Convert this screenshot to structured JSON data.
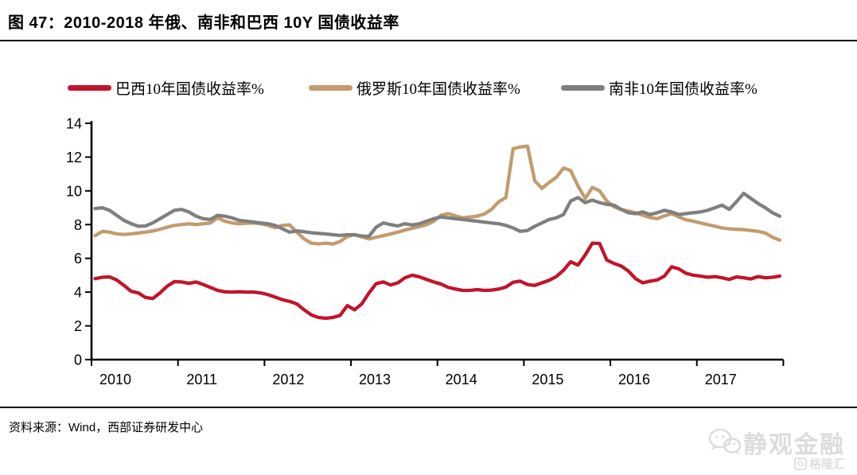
{
  "figure": {
    "title": "图 47：2010-2018 年俄、南非和巴西 10Y 国债收益率",
    "source": "资料来源：Wind，西部证券研发中心"
  },
  "watermark": {
    "wechat_name": "静观金融",
    "logo_letter": "G",
    "platform_name": "格隆汇"
  },
  "chart_data": {
    "type": "line",
    "title": "",
    "xlabel": "",
    "ylabel": "",
    "x_tick_labels": [
      "2010",
      "2011",
      "2012",
      "2013",
      "2014",
      "2015",
      "2016",
      "2017"
    ],
    "x_range_years": [
      2010,
      2018
    ],
    "ylim": [
      0,
      14
    ],
    "y_ticks": [
      0,
      2,
      4,
      6,
      8,
      10,
      12,
      14
    ],
    "grid": false,
    "legend_position": "top",
    "x_frequency": "monthly",
    "series": [
      {
        "name": "巴西10年国债收益率%",
        "color": "#C0152B",
        "values": [
          4.8,
          4.88,
          4.9,
          4.72,
          4.4,
          4.05,
          3.95,
          3.68,
          3.62,
          3.95,
          4.35,
          4.62,
          4.6,
          4.52,
          4.6,
          4.45,
          4.28,
          4.1,
          4.02,
          4.0,
          4.02,
          4.0,
          4.0,
          3.95,
          3.85,
          3.7,
          3.55,
          3.45,
          3.3,
          2.95,
          2.65,
          2.5,
          2.45,
          2.5,
          2.62,
          3.2,
          2.95,
          3.3,
          3.95,
          4.5,
          4.6,
          4.42,
          4.55,
          4.85,
          5.0,
          4.9,
          4.75,
          4.6,
          4.48,
          4.28,
          4.18,
          4.1,
          4.1,
          4.15,
          4.1,
          4.12,
          4.18,
          4.3,
          4.58,
          4.65,
          4.45,
          4.4,
          4.55,
          4.7,
          4.92,
          5.3,
          5.8,
          5.6,
          6.2,
          6.9,
          6.88,
          5.9,
          5.7,
          5.55,
          5.25,
          4.8,
          4.55,
          4.65,
          4.72,
          4.95,
          5.5,
          5.38,
          5.12,
          5.0,
          4.95,
          4.88,
          4.92,
          4.85,
          4.75,
          4.9,
          4.85,
          4.78,
          4.92,
          4.85,
          4.88,
          4.95
        ]
      },
      {
        "name": "俄罗斯10年国债收益率%",
        "color": "#C39B6E",
        "values": [
          7.35,
          7.6,
          7.55,
          7.45,
          7.42,
          7.45,
          7.5,
          7.55,
          7.62,
          7.72,
          7.85,
          7.95,
          8.0,
          8.05,
          8.0,
          8.05,
          8.1,
          8.4,
          8.2,
          8.1,
          8.05,
          8.08,
          8.1,
          8.05,
          7.95,
          7.82,
          7.95,
          7.98,
          7.55,
          7.15,
          6.9,
          6.86,
          6.9,
          6.85,
          7.0,
          7.3,
          7.4,
          7.28,
          7.15,
          7.25,
          7.35,
          7.45,
          7.55,
          7.68,
          7.78,
          7.88,
          8.0,
          8.2,
          8.55,
          8.65,
          8.52,
          8.4,
          8.45,
          8.5,
          8.62,
          8.9,
          9.35,
          9.6,
          12.5,
          12.6,
          12.65,
          10.6,
          10.15,
          10.5,
          10.8,
          11.35,
          11.2,
          10.3,
          9.55,
          10.2,
          10.0,
          9.4,
          9.05,
          8.9,
          8.8,
          8.7,
          8.55,
          8.42,
          8.35,
          8.52,
          8.65,
          8.45,
          8.28,
          8.2,
          8.1,
          8.0,
          7.9,
          7.8,
          7.75,
          7.72,
          7.7,
          7.65,
          7.6,
          7.5,
          7.25,
          7.08
        ]
      },
      {
        "name": "南非10年国债收益率%",
        "color": "#7F7F7F",
        "values": [
          8.95,
          9.0,
          8.85,
          8.55,
          8.25,
          8.05,
          7.9,
          7.92,
          8.1,
          8.35,
          8.6,
          8.85,
          8.9,
          8.75,
          8.5,
          8.35,
          8.3,
          8.55,
          8.5,
          8.4,
          8.25,
          8.2,
          8.15,
          8.1,
          8.05,
          7.95,
          7.75,
          7.55,
          7.62,
          7.58,
          7.52,
          7.48,
          7.45,
          7.4,
          7.36,
          7.4,
          7.4,
          7.32,
          7.3,
          7.85,
          8.1,
          8.0,
          7.92,
          8.05,
          7.98,
          8.05,
          8.2,
          8.35,
          8.45,
          8.4,
          8.35,
          8.3,
          8.25,
          8.2,
          8.15,
          8.1,
          8.05,
          7.95,
          7.8,
          7.6,
          7.65,
          7.9,
          8.1,
          8.3,
          8.4,
          8.6,
          9.4,
          9.6,
          9.3,
          9.45,
          9.3,
          9.2,
          9.15,
          8.9,
          8.7,
          8.65,
          8.75,
          8.6,
          8.7,
          8.85,
          8.75,
          8.6,
          8.65,
          8.7,
          8.75,
          8.85,
          9.0,
          9.15,
          8.9,
          9.35,
          9.85,
          9.55,
          9.25,
          9.0,
          8.7,
          8.5
        ]
      }
    ]
  }
}
